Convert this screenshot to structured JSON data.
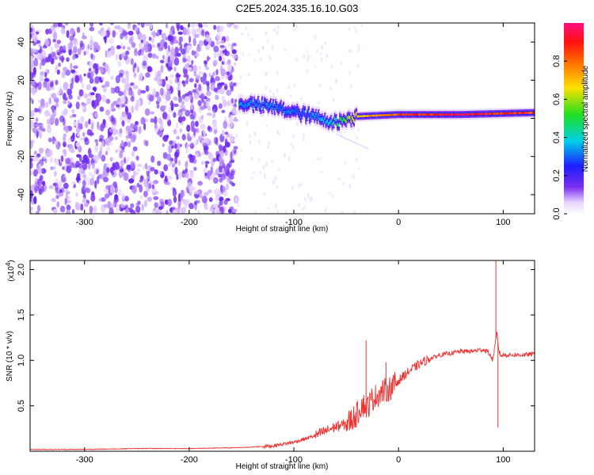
{
  "title": "C2E5.2024.335.16.10.G03",
  "colors": {
    "axis": "#000000",
    "snr_line": "#ee3333",
    "background": "#ffffff",
    "colormap": [
      "#ffffff",
      "#e0c8ff",
      "#7a2ef0",
      "#1d1dff",
      "#00d0e8",
      "#20e020",
      "#ffe000",
      "#ff7a00",
      "#ff1010",
      "#ff1080"
    ]
  },
  "chart_data": [
    {
      "type": "heatmap",
      "title": "",
      "xlabel": "Height of straight line (km)",
      "ylabel": "Frequency (Hz)",
      "xlim": [
        -352,
        130
      ],
      "ylim": [
        -50,
        50
      ],
      "x_ticks": [
        -300,
        -200,
        -100,
        0,
        100
      ],
      "y_ticks": [
        -40,
        -20,
        0,
        20,
        40
      ],
      "grid": false,
      "colorbar": {
        "label": "Normalized spectral amplitude",
        "range": [
          0.0,
          1.0
        ],
        "ticks": [
          0.0,
          0.2,
          0.4,
          0.6,
          0.8
        ]
      },
      "ridge": {
        "description_x": [
          -150,
          -120,
          -90,
          -60,
          -40,
          0,
          60,
          130
        ],
        "frequency_hz": [
          8,
          6,
          2,
          -2,
          1,
          2,
          2,
          3
        ],
        "amplitude": [
          0.35,
          0.35,
          0.32,
          0.45,
          0.75,
          0.9,
          1.0,
          0.9
        ]
      },
      "noise_region": {
        "x_from": -352,
        "x_to": -155,
        "amplitude": 0.2
      }
    },
    {
      "type": "line",
      "title": "",
      "xlabel": "Height of straight line (km)",
      "ylabel": "SNR (10 * v/v)",
      "y_multiplier": "(x10",
      "y_multiplier_exp": "4",
      "y_multiplier_close": ")",
      "xlim": [
        -352,
        130
      ],
      "ylim": [
        0,
        2.1
      ],
      "x_ticks": [
        -300,
        -200,
        -100,
        0,
        100
      ],
      "y_ticks": [
        0.5,
        1.0,
        1.5,
        2.0
      ],
      "y_tick_labels": [
        "0.5",
        "1.0",
        "1.5",
        "2.0"
      ],
      "grid": false,
      "series": [
        {
          "x": [
            -352,
            -300,
            -250,
            -200,
            -150,
            -120,
            -100,
            -80,
            -70,
            -60,
            -50,
            -40,
            -35,
            -30,
            -25,
            -20,
            -15,
            -10,
            -5,
            0,
            10,
            20,
            30,
            40,
            50,
            60,
            70,
            80,
            85,
            88,
            90,
            92,
            94,
            96,
            98,
            100,
            110,
            120,
            130
          ],
          "y": [
            0.02,
            0.02,
            0.03,
            0.03,
            0.04,
            0.06,
            0.1,
            0.17,
            0.22,
            0.27,
            0.3,
            0.4,
            0.52,
            0.48,
            0.58,
            0.62,
            0.66,
            0.68,
            0.72,
            0.78,
            0.88,
            0.96,
            1.02,
            1.06,
            1.08,
            1.1,
            1.1,
            1.12,
            1.1,
            1.05,
            1.0,
            1.15,
            1.3,
            1.1,
            1.05,
            1.06,
            1.06,
            1.06,
            1.07
          ]
        }
      ],
      "spikes": [
        {
          "x": -31,
          "y": 1.22
        },
        {
          "x": -12,
          "y": 0.98
        },
        {
          "x": 93,
          "y": 2.1
        },
        {
          "x": 95,
          "y": 0.26
        }
      ]
    }
  ]
}
